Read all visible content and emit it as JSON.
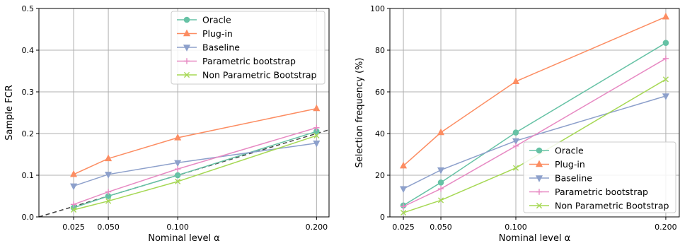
{
  "chart_data": [
    {
      "type": "line",
      "title": "",
      "xlabel": "Nominal level α",
      "ylabel": "Sample FCR",
      "x": [
        0.025,
        0.05,
        0.1,
        0.2
      ],
      "x_tick_labels": [
        "0.025",
        "0.050",
        "0.100",
        "0.200"
      ],
      "xlim": [
        0,
        0.209
      ],
      "ylim": [
        0,
        0.5
      ],
      "y_ticks": [
        0.0,
        0.1,
        0.2,
        0.3,
        0.4,
        0.5
      ],
      "y_tick_labels": [
        "0.0",
        "0.1",
        "0.2",
        "0.3",
        "0.4",
        "0.5"
      ],
      "grid": true,
      "legend_position": "top-right",
      "reference_line": {
        "type": "identity",
        "style": "dashed",
        "color": "#444444"
      },
      "series": [
        {
          "name": "Oracle",
          "marker": "circle",
          "color": "#66c2a5",
          "values": [
            0.022,
            0.05,
            0.1,
            0.205
          ]
        },
        {
          "name": "Plug-in",
          "marker": "triangle-up",
          "color": "#fc8d62",
          "values": [
            0.102,
            0.14,
            0.19,
            0.26
          ]
        },
        {
          "name": "Baseline",
          "marker": "triangle-down",
          "color": "#8da0cb",
          "values": [
            0.074,
            0.102,
            0.13,
            0.177
          ]
        },
        {
          "name": "Parametric bootstrap",
          "marker": "plus",
          "color": "#e78ac3",
          "values": [
            0.03,
            0.06,
            0.115,
            0.214
          ]
        },
        {
          "name": "Non Parametric Bootstrap",
          "marker": "x",
          "color": "#a6d854",
          "values": [
            0.017,
            0.038,
            0.085,
            0.195
          ]
        }
      ]
    },
    {
      "type": "line",
      "title": "",
      "xlabel": "Nominal level α",
      "ylabel": "Selection frequency (%)",
      "x": [
        0.025,
        0.05,
        0.1,
        0.2
      ],
      "x_tick_labels": [
        "0.025",
        "0.050",
        "0.100",
        "0.200"
      ],
      "xlim": [
        0.016,
        0.209
      ],
      "ylim": [
        0,
        100
      ],
      "y_ticks": [
        0,
        20,
        40,
        60,
        80,
        100
      ],
      "y_tick_labels": [
        "0",
        "20",
        "40",
        "60",
        "80",
        "100"
      ],
      "grid": true,
      "legend_position": "lower-right",
      "series": [
        {
          "name": "Oracle",
          "marker": "circle",
          "color": "#66c2a5",
          "values": [
            5.5,
            16.5,
            40.5,
            83.5
          ]
        },
        {
          "name": "Plug-in",
          "marker": "triangle-up",
          "color": "#fc8d62",
          "values": [
            24.5,
            40.5,
            65,
            96
          ]
        },
        {
          "name": "Baseline",
          "marker": "triangle-down",
          "color": "#8da0cb",
          "values": [
            13.5,
            22.5,
            36.5,
            58
          ]
        },
        {
          "name": "Parametric bootstrap",
          "marker": "plus",
          "color": "#e78ac3",
          "values": [
            5,
            13.5,
            34,
            76
          ]
        },
        {
          "name": "Non Parametric Bootstrap",
          "marker": "x",
          "color": "#a6d854",
          "values": [
            2,
            8,
            23.5,
            66
          ]
        }
      ]
    }
  ]
}
